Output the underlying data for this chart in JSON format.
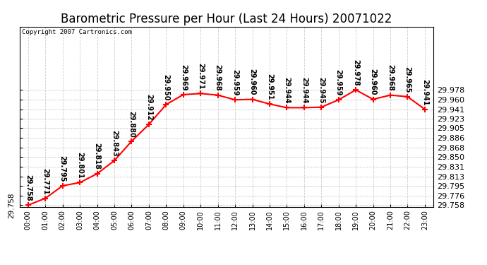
{
  "title": "Barometric Pressure per Hour (Last 24 Hours) 20071022",
  "copyright": "Copyright 2007 Cartronics.com",
  "hours": [
    "00:00",
    "01:00",
    "02:00",
    "03:00",
    "04:00",
    "05:00",
    "06:00",
    "07:00",
    "08:00",
    "09:00",
    "10:00",
    "11:00",
    "12:00",
    "13:00",
    "14:00",
    "15:00",
    "16:00",
    "17:00",
    "18:00",
    "19:00",
    "20:00",
    "21:00",
    "22:00",
    "23:00"
  ],
  "values": [
    29.758,
    29.771,
    29.795,
    29.801,
    29.818,
    29.843,
    29.88,
    29.912,
    29.95,
    29.969,
    29.971,
    29.968,
    29.959,
    29.96,
    29.951,
    29.944,
    29.944,
    29.945,
    29.959,
    29.978,
    29.96,
    29.968,
    29.965,
    29.941
  ],
  "ylim_min": 29.758,
  "ylim_max": 29.978,
  "yticks": [
    29.758,
    29.776,
    29.795,
    29.813,
    29.831,
    29.85,
    29.868,
    29.886,
    29.905,
    29.923,
    29.941,
    29.96,
    29.978
  ],
  "line_color": "red",
  "marker_color": "red",
  "bg_color": "white",
  "grid_color": "#cccccc",
  "title_fontsize": 12,
  "annotation_fontsize": 7,
  "annotation_rotation": 270,
  "copyright_fontsize": 6.5
}
